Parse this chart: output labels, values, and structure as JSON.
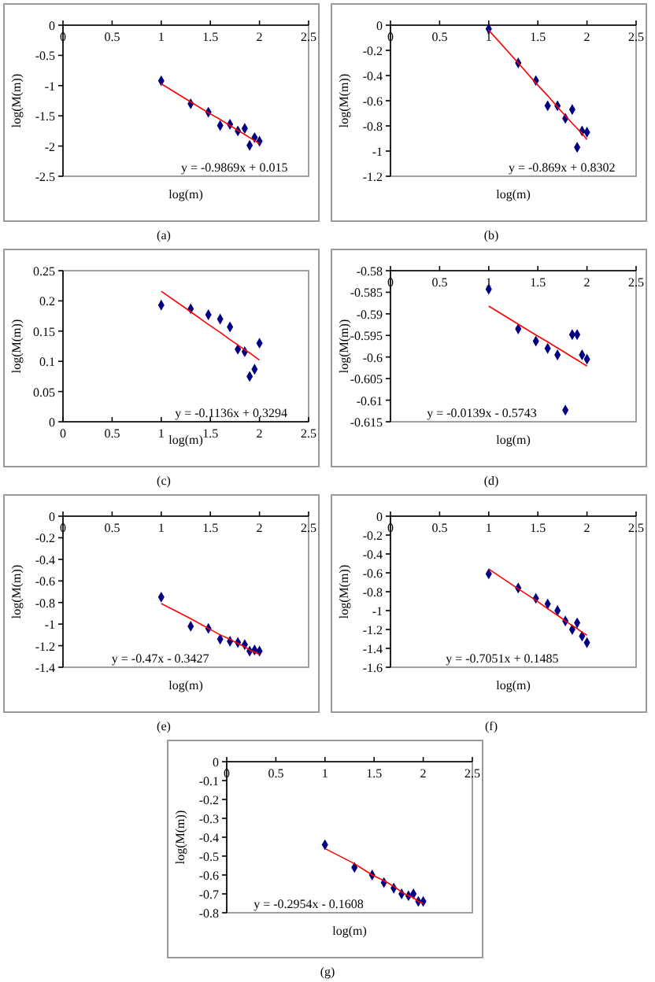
{
  "chart_data": [
    {
      "type": "scatter",
      "title": "(a)",
      "xlabel": "log(m)",
      "ylabel": "log(M(m))",
      "xlim": [
        0,
        2.5
      ],
      "xticks": [
        0,
        0.5,
        1,
        1.5,
        2,
        2.5
      ],
      "ylim": [
        -2.5,
        0
      ],
      "yticks": [
        -2.5,
        -2,
        -1.5,
        -1,
        -0.5,
        0
      ],
      "x": [
        1,
        1.3,
        1.48,
        1.6,
        1.7,
        1.78,
        1.85,
        1.9,
        1.95,
        2
      ],
      "series": [
        {
          "marker": "diamond",
          "color": "#000080",
          "values": [
            -0.92,
            -1.3,
            -1.44,
            -1.66,
            -1.64,
            -1.75,
            -1.71,
            -1.99,
            -1.86,
            -1.92
          ]
        },
        {
          "type": "line",
          "color": "#ff0000",
          "values": [
            -0.97,
            -1.27,
            -1.45,
            -1.56,
            -1.66,
            -1.74,
            -1.81,
            -1.86,
            -1.91,
            -1.96
          ]
        }
      ],
      "annotations": [
        "y = -0.9869x + 0.015"
      ]
    },
    {
      "type": "scatter",
      "title": "(b)",
      "xlabel": "log(m)",
      "ylabel": "log(M(m))",
      "xlim": [
        0,
        2.5
      ],
      "xticks": [
        0,
        0.5,
        1,
        1.5,
        2,
        2.5
      ],
      "ylim": [
        -1.2,
        0
      ],
      "yticks": [
        -1.2,
        -1,
        -0.8,
        -0.6,
        -0.4,
        -0.2,
        0
      ],
      "x": [
        1,
        1.3,
        1.48,
        1.6,
        1.7,
        1.78,
        1.85,
        1.9,
        1.95,
        2
      ],
      "series": [
        {
          "marker": "diamond",
          "color": "#000080",
          "values": [
            -0.03,
            -0.3,
            -0.44,
            -0.64,
            -0.64,
            -0.74,
            -0.67,
            -0.97,
            -0.84,
            -0.85
          ]
        },
        {
          "type": "line",
          "color": "#ff0000",
          "values": [
            -0.04,
            -0.3,
            -0.46,
            -0.56,
            -0.65,
            -0.72,
            -0.78,
            -0.82,
            -0.86,
            -0.91
          ]
        }
      ],
      "annotations": [
        "y = -0.869x + 0.8302"
      ]
    },
    {
      "type": "scatter",
      "title": "(c)",
      "xlabel": "log(m)",
      "ylabel": "log(M(m))",
      "xlim": [
        0,
        2.5
      ],
      "xticks": [
        0,
        0.5,
        1,
        1.5,
        2,
        2.5
      ],
      "ylim": [
        0,
        0.25
      ],
      "yticks": [
        0,
        0.05,
        0.1,
        0.15,
        0.2,
        0.25
      ],
      "x": [
        1,
        1.3,
        1.48,
        1.6,
        1.7,
        1.78,
        1.85,
        1.9,
        1.95,
        2
      ],
      "series": [
        {
          "marker": "diamond",
          "color": "#000080",
          "values": [
            0.193,
            0.187,
            0.177,
            0.17,
            0.157,
            0.12,
            0.116,
            0.075,
            0.087,
            0.13
          ]
        },
        {
          "type": "line",
          "color": "#ff0000",
          "values": [
            0.216,
            0.182,
            0.161,
            0.148,
            0.136,
            0.127,
            0.119,
            0.114,
            0.108,
            0.102
          ]
        }
      ],
      "annotations": [
        "y = -0.1136x + 0.3294"
      ]
    },
    {
      "type": "scatter",
      "title": "(d)",
      "xlabel": "log(m)",
      "ylabel": "log(M(m))",
      "xlim": [
        0,
        2.5
      ],
      "xticks": [
        0,
        0.5,
        1,
        1.5,
        2,
        2.5
      ],
      "ylim": [
        -0.615,
        -0.58
      ],
      "yticks": [
        -0.615,
        -0.61,
        -0.605,
        -0.6,
        -0.595,
        -0.59,
        -0.585,
        -0.58
      ],
      "x": [
        1,
        1.3,
        1.48,
        1.6,
        1.7,
        1.78,
        1.85,
        1.9,
        1.95,
        2
      ],
      "series": [
        {
          "marker": "diamond",
          "color": "#000080",
          "values": [
            -0.5843,
            -0.5935,
            -0.5963,
            -0.598,
            -0.5995,
            -0.6123,
            -0.5948,
            -0.5948,
            -0.5995,
            -0.6005
          ]
        },
        {
          "type": "line",
          "color": "#ff0000",
          "values": [
            -0.5882,
            -0.5924,
            -0.5949,
            -0.5965,
            -0.5979,
            -0.599,
            -0.6,
            -0.6007,
            -0.6014,
            -0.6021
          ]
        }
      ],
      "annotations": [
        "y = -0.0139x - 0.5743"
      ]
    },
    {
      "type": "scatter",
      "title": "(e)",
      "xlabel": "log(m)",
      "ylabel": "log(M(m))",
      "xlim": [
        0,
        2.5
      ],
      "xticks": [
        0,
        0.5,
        1,
        1.5,
        2,
        2.5
      ],
      "ylim": [
        -1.4,
        0
      ],
      "yticks": [
        -1.4,
        -1.2,
        -1,
        -0.8,
        -0.6,
        -0.4,
        -0.2,
        0
      ],
      "x": [
        1,
        1.3,
        1.48,
        1.6,
        1.7,
        1.78,
        1.85,
        1.9,
        1.95,
        2
      ],
      "series": [
        {
          "marker": "diamond",
          "color": "#000080",
          "values": [
            -0.75,
            -1.02,
            -1.04,
            -1.14,
            -1.16,
            -1.17,
            -1.19,
            -1.25,
            -1.24,
            -1.25
          ]
        },
        {
          "type": "line",
          "color": "#ff0000",
          "values": [
            -0.81,
            -0.95,
            -1.04,
            -1.1,
            -1.14,
            -1.18,
            -1.21,
            -1.24,
            -1.26,
            -1.28
          ]
        }
      ],
      "annotations": [
        "y = -0.47x - 0.3427"
      ]
    },
    {
      "type": "scatter",
      "title": "(f)",
      "xlabel": "log(m)",
      "ylabel": "log(M(m))",
      "xlim": [
        0,
        2.5
      ],
      "xticks": [
        0,
        0.5,
        1,
        1.5,
        2,
        2.5
      ],
      "ylim": [
        -1.6,
        0
      ],
      "yticks": [
        -1.6,
        -1.4,
        -1.2,
        -1,
        -0.8,
        -0.6,
        -0.4,
        -0.2,
        0
      ],
      "x": [
        1,
        1.3,
        1.48,
        1.6,
        1.7,
        1.78,
        1.85,
        1.9,
        1.95,
        2
      ],
      "series": [
        {
          "marker": "diamond",
          "color": "#000080",
          "values": [
            -0.61,
            -0.76,
            -0.87,
            -0.93,
            -1.0,
            -1.11,
            -1.2,
            -1.13,
            -1.27,
            -1.34
          ]
        },
        {
          "type": "line",
          "color": "#ff0000",
          "values": [
            -0.56,
            -0.77,
            -0.89,
            -0.98,
            -1.05,
            -1.11,
            -1.16,
            -1.19,
            -1.23,
            -1.26
          ]
        }
      ],
      "annotations": [
        "y = -0.7051x + 0.1485"
      ]
    },
    {
      "type": "scatter",
      "title": "(g)",
      "xlabel": "log(m)",
      "ylabel": "log(M(m))",
      "xlim": [
        0,
        2.5
      ],
      "xticks": [
        0,
        0.5,
        1,
        1.5,
        2,
        2.5
      ],
      "ylim": [
        -0.8,
        0
      ],
      "yticks": [
        -0.8,
        -0.7,
        -0.6,
        -0.5,
        -0.4,
        -0.3,
        -0.2,
        -0.1,
        0
      ],
      "x": [
        1,
        1.3,
        1.48,
        1.6,
        1.7,
        1.78,
        1.85,
        1.9,
        1.95,
        2
      ],
      "series": [
        {
          "marker": "diamond",
          "color": "#000080",
          "values": [
            -0.44,
            -0.56,
            -0.6,
            -0.64,
            -0.67,
            -0.7,
            -0.71,
            -0.7,
            -0.74,
            -0.74
          ]
        },
        {
          "type": "line",
          "color": "#ff0000",
          "values": [
            -0.46,
            -0.54,
            -0.6,
            -0.63,
            -0.66,
            -0.69,
            -0.71,
            -0.72,
            -0.74,
            -0.75
          ]
        }
      ],
      "annotations": [
        "y = -0.2954x - 0.1608"
      ]
    }
  ]
}
